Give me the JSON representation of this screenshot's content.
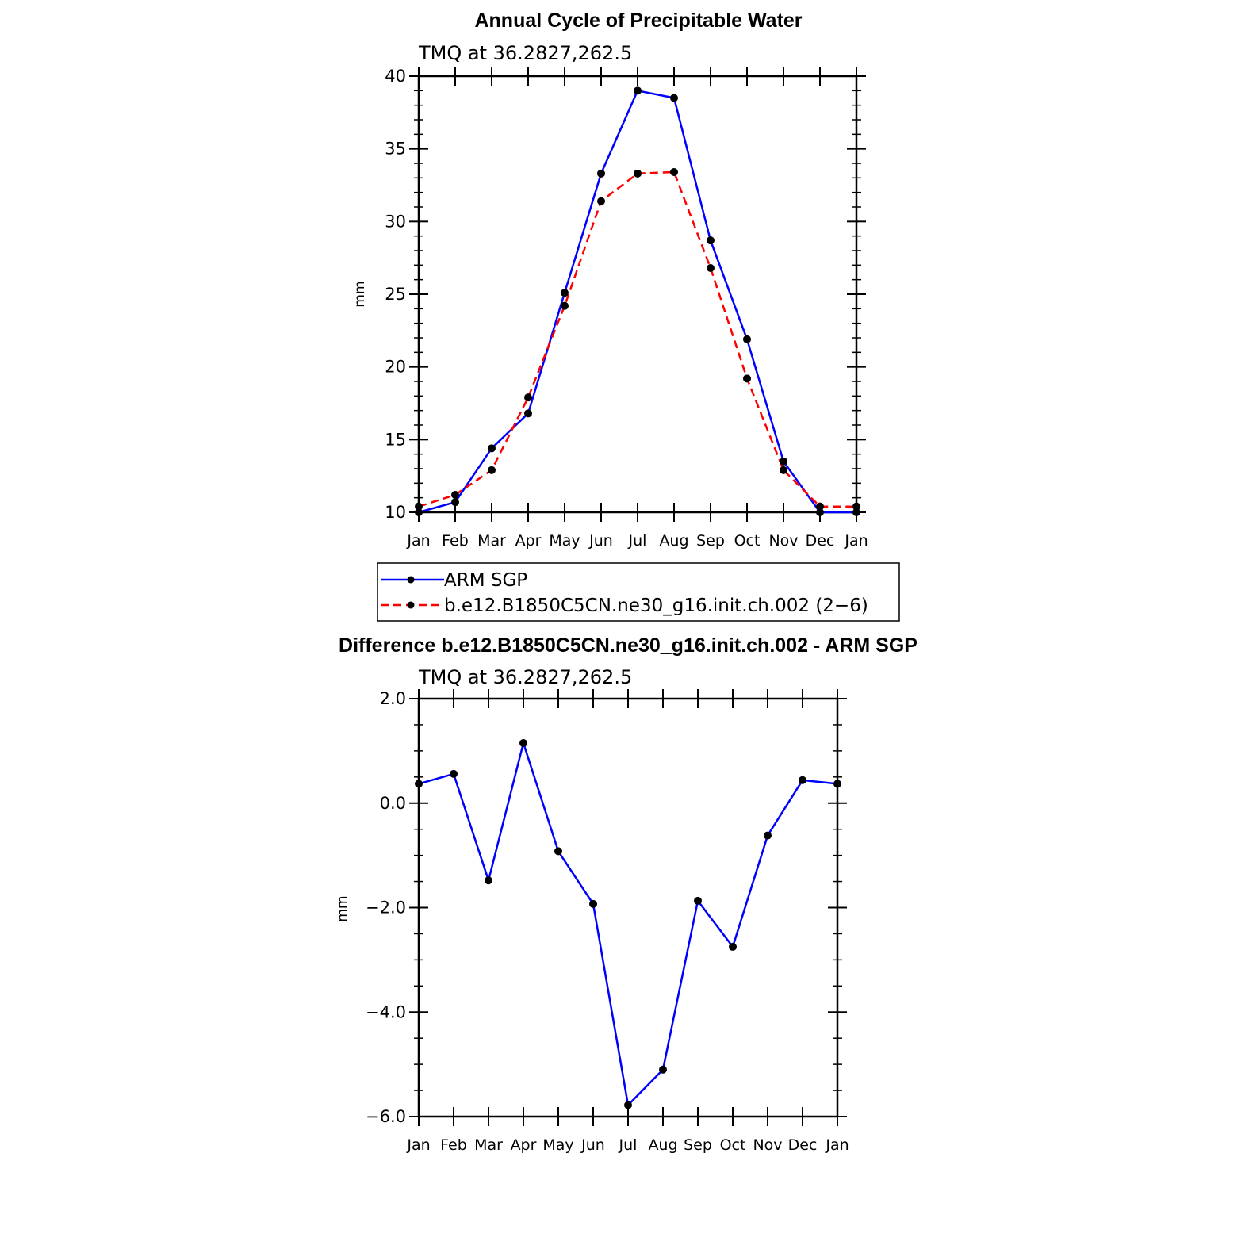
{
  "chart_data": [
    {
      "type": "line",
      "title": "Annual Cycle of Precipitable Water",
      "subtitle": "TMQ at 36.2827,262.5",
      "ylabel": "mm",
      "xlabel": "",
      "categories": [
        "Jan",
        "Feb",
        "Mar",
        "Apr",
        "May",
        "Jun",
        "Jul",
        "Aug",
        "Sep",
        "Oct",
        "Nov",
        "Dec",
        "Jan"
      ],
      "ylim": [
        10,
        40
      ],
      "yticks": [
        "10",
        "15",
        "20",
        "25",
        "30",
        "35",
        "40"
      ],
      "legend_position": "below",
      "series": [
        {
          "name": "ARM SGP",
          "color": "#0000ff",
          "dash": "solid",
          "values": [
            10.0,
            10.7,
            14.4,
            16.8,
            25.1,
            33.3,
            39.0,
            38.5,
            28.7,
            21.9,
            13.5,
            10.0,
            10.0
          ]
        },
        {
          "name": "b.e12.B1850C5CN.ne30_g16.init.ch.002 (2−6)",
          "color": "#ff0000",
          "dash": "dashed",
          "values": [
            10.4,
            11.2,
            12.9,
            17.9,
            24.2,
            31.4,
            33.3,
            33.4,
            26.8,
            19.2,
            12.9,
            10.4,
            10.4
          ]
        }
      ]
    },
    {
      "type": "line",
      "title": "Difference b.e12.B1850C5CN.ne30_g16.init.ch.002 - ARM SGP",
      "subtitle": "TMQ at 36.2827,262.5",
      "ylabel": "mm",
      "xlabel": "",
      "categories": [
        "Jan",
        "Feb",
        "Mar",
        "Apr",
        "May",
        "Jun",
        "Jul",
        "Aug",
        "Sep",
        "Oct",
        "Nov",
        "Dec",
        "Jan"
      ],
      "ylim": [
        -6,
        2
      ],
      "yticks": [
        "−6.0",
        "−4.0",
        "−2.0",
        "0.0",
        "2.0"
      ],
      "series": [
        {
          "color": "#0000ff",
          "dash": "solid",
          "values": [
            0.37,
            0.56,
            -1.48,
            1.15,
            -0.92,
            -1.93,
            -5.78,
            -5.1,
            -1.87,
            -2.75,
            -0.62,
            0.44,
            0.37
          ]
        }
      ]
    }
  ]
}
